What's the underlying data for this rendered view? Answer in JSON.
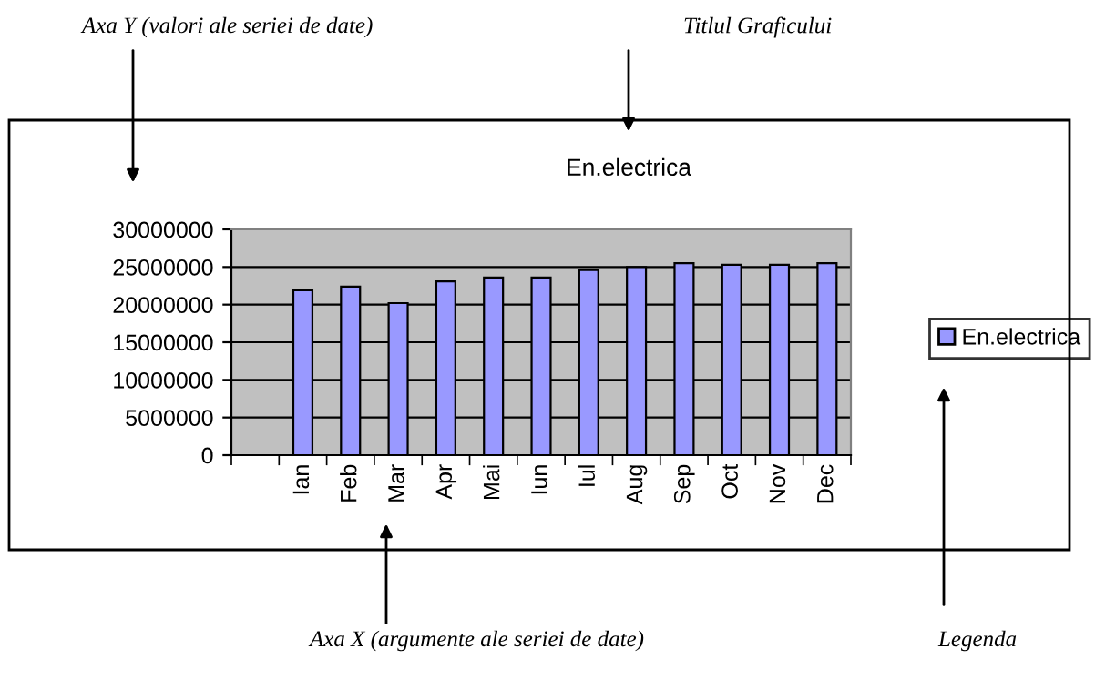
{
  "chart_data": {
    "type": "bar",
    "title": "En.electrica",
    "categories": [
      null,
      "Ian",
      "Feb",
      "Mar",
      "Apr",
      "Mai",
      "Iun",
      "Iul",
      "Aug",
      "Sep",
      "Oct",
      "Nov",
      "Dec"
    ],
    "series": [
      {
        "name": "En.electrica",
        "color": "#9999ff",
        "values": [
          null,
          21900000,
          22400000,
          20200000,
          23100000,
          23600000,
          23600000,
          24600000,
          25000000,
          25500000,
          25300000,
          25300000,
          25500000
        ]
      }
    ],
    "ylim": [
      0,
      30000000
    ],
    "yticks": [
      0,
      5000000,
      10000000,
      15000000,
      20000000,
      25000000,
      30000000
    ],
    "grid": "y",
    "legend": "right",
    "annotations": [
      "Axa Y (valori ale seriei de date)",
      "Titlul Graficului",
      "Axa X (argumente ale seriei de date)",
      "Legenda"
    ]
  }
}
